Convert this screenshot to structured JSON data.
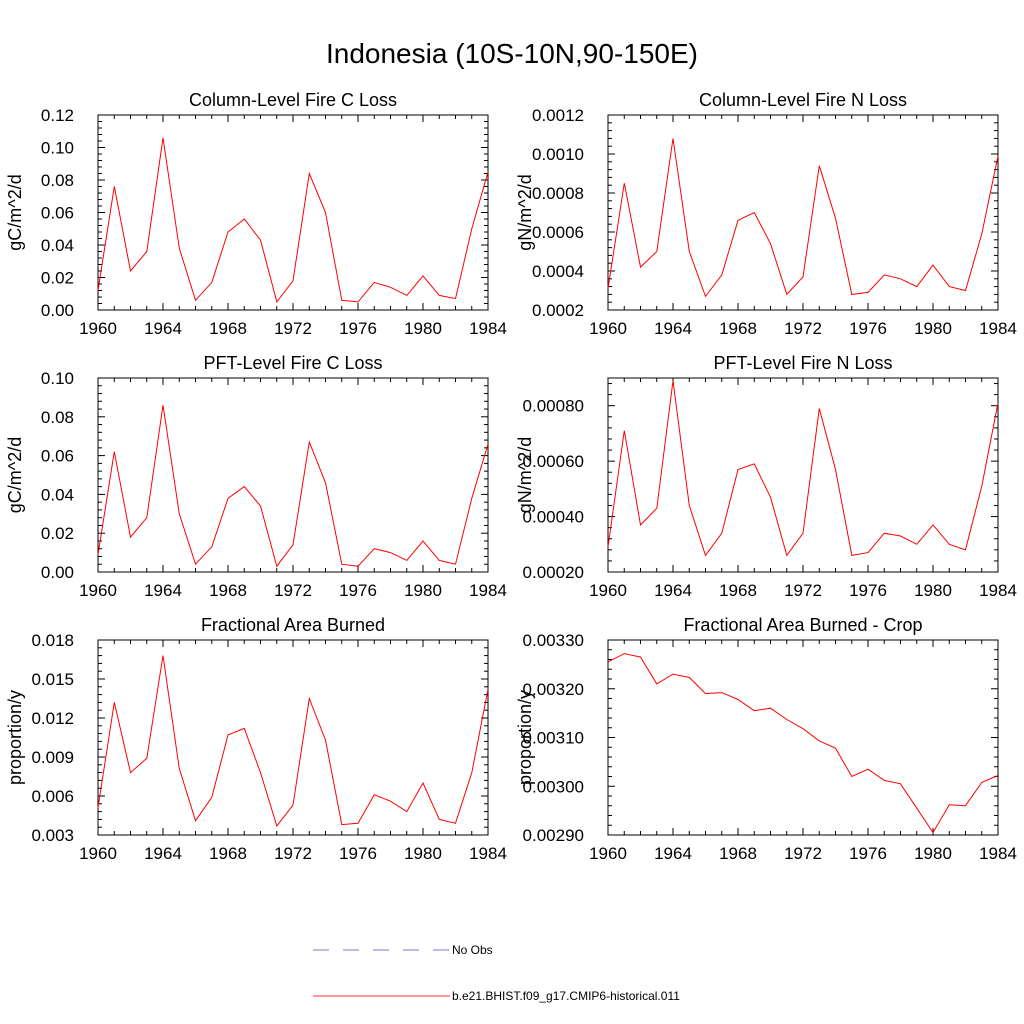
{
  "page": {
    "title": "Indonesia (10S-10N,90-150E)"
  },
  "legend": [
    {
      "label": "No Obs",
      "color": "#7777cc",
      "style": "dashed"
    },
    {
      "label": "b.e21.BHIST.f09_g17.CMIP6-historical.011",
      "color": "#ff3333",
      "style": "solid"
    }
  ],
  "chart_data": [
    {
      "type": "line",
      "title": "Column-Level Fire C Loss",
      "ylabel": "gC/m^2/d",
      "xlim": [
        1960,
        1984
      ],
      "ylim": [
        0.0,
        0.12
      ],
      "xticks": [
        1960,
        1964,
        1968,
        1972,
        1976,
        1980,
        1984
      ],
      "yticks": [
        0.0,
        0.02,
        0.04,
        0.06,
        0.08,
        0.1,
        0.12
      ],
      "ytick_labels": [
        "0.00",
        "0.02",
        "0.04",
        "0.06",
        "0.08",
        "0.10",
        "0.12"
      ],
      "grid": false,
      "x": [
        1960,
        1961,
        1962,
        1963,
        1964,
        1965,
        1966,
        1967,
        1968,
        1969,
        1970,
        1971,
        1972,
        1973,
        1974,
        1975,
        1976,
        1977,
        1978,
        1979,
        1980,
        1981,
        1982,
        1983,
        1984
      ],
      "series": [
        {
          "name": "b.e21.BHIST.f09_g17.CMIP6-historical.011",
          "color": "#ff0000",
          "values": [
            0.012,
            0.076,
            0.024,
            0.036,
            0.106,
            0.038,
            0.006,
            0.017,
            0.048,
            0.056,
            0.043,
            0.005,
            0.018,
            0.084,
            0.06,
            0.006,
            0.005,
            0.017,
            0.014,
            0.009,
            0.021,
            0.009,
            0.007,
            0.05,
            0.085
          ]
        }
      ]
    },
    {
      "type": "line",
      "title": "Column-Level Fire N Loss",
      "ylabel": "gN/m^2/d",
      "xlim": [
        1960,
        1984
      ],
      "ylim": [
        0.0002,
        0.0012
      ],
      "xticks": [
        1960,
        1964,
        1968,
        1972,
        1976,
        1980,
        1984
      ],
      "yticks": [
        0.0002,
        0.0004,
        0.0006,
        0.0008,
        0.001,
        0.0012
      ],
      "ytick_labels": [
        "0.0002",
        "0.0004",
        "0.0006",
        "0.0008",
        "0.0010",
        "0.0012"
      ],
      "grid": false,
      "x": [
        1960,
        1961,
        1962,
        1963,
        1964,
        1965,
        1966,
        1967,
        1968,
        1969,
        1970,
        1971,
        1972,
        1973,
        1974,
        1975,
        1976,
        1977,
        1978,
        1979,
        1980,
        1981,
        1982,
        1983,
        1984
      ],
      "series": [
        {
          "name": "b.e21.BHIST.f09_g17.CMIP6-historical.011",
          "color": "#ff0000",
          "values": [
            0.00031,
            0.00085,
            0.00042,
            0.0005,
            0.00108,
            0.0005,
            0.00027,
            0.00038,
            0.00066,
            0.0007,
            0.00054,
            0.00028,
            0.00037,
            0.00094,
            0.00067,
            0.00028,
            0.00029,
            0.00038,
            0.00036,
            0.00032,
            0.00043,
            0.00032,
            0.0003,
            0.00059,
            0.00099
          ]
        }
      ]
    },
    {
      "type": "line",
      "title": "PFT-Level Fire C Loss",
      "ylabel": "gC/m^2/d",
      "xlim": [
        1960,
        1984
      ],
      "ylim": [
        0.0,
        0.1
      ],
      "xticks": [
        1960,
        1964,
        1968,
        1972,
        1976,
        1980,
        1984
      ],
      "yticks": [
        0.0,
        0.02,
        0.04,
        0.06,
        0.08,
        0.1
      ],
      "ytick_labels": [
        "0.00",
        "0.02",
        "0.04",
        "0.06",
        "0.08",
        "0.10"
      ],
      "grid": false,
      "x": [
        1960,
        1961,
        1962,
        1963,
        1964,
        1965,
        1966,
        1967,
        1968,
        1969,
        1970,
        1971,
        1972,
        1973,
        1974,
        1975,
        1976,
        1977,
        1978,
        1979,
        1980,
        1981,
        1982,
        1983,
        1984
      ],
      "series": [
        {
          "name": "b.e21.BHIST.f09_g17.CMIP6-historical.011",
          "color": "#ff0000",
          "values": [
            0.009,
            0.062,
            0.018,
            0.028,
            0.086,
            0.03,
            0.004,
            0.013,
            0.038,
            0.044,
            0.034,
            0.003,
            0.014,
            0.067,
            0.046,
            0.004,
            0.003,
            0.012,
            0.01,
            0.006,
            0.016,
            0.006,
            0.004,
            0.038,
            0.066
          ]
        }
      ]
    },
    {
      "type": "line",
      "title": "PFT-Level Fire N Loss",
      "ylabel": "gN/m^2/d",
      "xlim": [
        1960,
        1984
      ],
      "ylim": [
        0.0002,
        0.0009
      ],
      "xticks": [
        1960,
        1964,
        1968,
        1972,
        1976,
        1980,
        1984
      ],
      "yticks": [
        0.0002,
        0.0004,
        0.0006,
        0.0008
      ],
      "ytick_labels": [
        "0.00020",
        "0.00040",
        "0.00060",
        "0.00080"
      ],
      "grid": false,
      "x": [
        1960,
        1961,
        1962,
        1963,
        1964,
        1965,
        1966,
        1967,
        1968,
        1969,
        1970,
        1971,
        1972,
        1973,
        1974,
        1975,
        1976,
        1977,
        1978,
        1979,
        1980,
        1981,
        1982,
        1983,
        1984
      ],
      "series": [
        {
          "name": "b.e21.BHIST.f09_g17.CMIP6-historical.011",
          "color": "#ff0000",
          "values": [
            0.00029,
            0.00071,
            0.00037,
            0.00043,
            0.00089,
            0.00044,
            0.00026,
            0.00034,
            0.00057,
            0.00059,
            0.00047,
            0.00026,
            0.00034,
            0.00079,
            0.00057,
            0.00026,
            0.00027,
            0.00034,
            0.00033,
            0.0003,
            0.00037,
            0.0003,
            0.00028,
            0.00051,
            0.00081
          ]
        }
      ]
    },
    {
      "type": "line",
      "title": "Fractional Area Burned",
      "ylabel": "proportion/y",
      "xlim": [
        1960,
        1984
      ],
      "ylim": [
        0.003,
        0.018
      ],
      "xticks": [
        1960,
        1964,
        1968,
        1972,
        1976,
        1980,
        1984
      ],
      "yticks": [
        0.003,
        0.006,
        0.009,
        0.012,
        0.015,
        0.018
      ],
      "ytick_labels": [
        "0.003",
        "0.006",
        "0.009",
        "0.012",
        "0.015",
        "0.018"
      ],
      "grid": false,
      "x": [
        1960,
        1961,
        1962,
        1963,
        1964,
        1965,
        1966,
        1967,
        1968,
        1969,
        1970,
        1971,
        1972,
        1973,
        1974,
        1975,
        1976,
        1977,
        1978,
        1979,
        1980,
        1981,
        1982,
        1983,
        1984
      ],
      "series": [
        {
          "name": "b.e21.BHIST.f09_g17.CMIP6-historical.011",
          "color": "#ff0000",
          "values": [
            0.0051,
            0.0132,
            0.0078,
            0.0089,
            0.0168,
            0.0081,
            0.0041,
            0.0059,
            0.0107,
            0.0112,
            0.0078,
            0.0037,
            0.0053,
            0.0135,
            0.0103,
            0.0038,
            0.0039,
            0.0061,
            0.0056,
            0.0048,
            0.007,
            0.0042,
            0.0039,
            0.0078,
            0.0142
          ]
        }
      ]
    },
    {
      "type": "line",
      "title": "Fractional Area Burned - Crop",
      "ylabel": "proportion/y",
      "xlim": [
        1960,
        1984
      ],
      "ylim": [
        0.0029,
        0.0033
      ],
      "xticks": [
        1960,
        1964,
        1968,
        1972,
        1976,
        1980,
        1984
      ],
      "yticks": [
        0.0029,
        0.003,
        0.0031,
        0.0032,
        0.0033
      ],
      "ytick_labels": [
        "0.00290",
        "0.00300",
        "0.00310",
        "0.00320",
        "0.00330"
      ],
      "grid": false,
      "x": [
        1960,
        1961,
        1962,
        1963,
        1964,
        1965,
        1966,
        1967,
        1968,
        1969,
        1970,
        1971,
        1972,
        1973,
        1974,
        1975,
        1976,
        1977,
        1978,
        1979,
        1980,
        1981,
        1982,
        1983,
        1984
      ],
      "series": [
        {
          "name": "b.e21.BHIST.f09_g17.CMIP6-historical.011",
          "color": "#ff0000",
          "values": [
            0.003255,
            0.003272,
            0.003265,
            0.00321,
            0.00323,
            0.003223,
            0.00319,
            0.003192,
            0.003178,
            0.003155,
            0.00316,
            0.003137,
            0.003118,
            0.003093,
            0.003078,
            0.00302,
            0.003035,
            0.003012,
            0.003005,
            0.002955,
            0.002905,
            0.002962,
            0.00296,
            0.003008,
            0.003022
          ]
        }
      ]
    }
  ]
}
